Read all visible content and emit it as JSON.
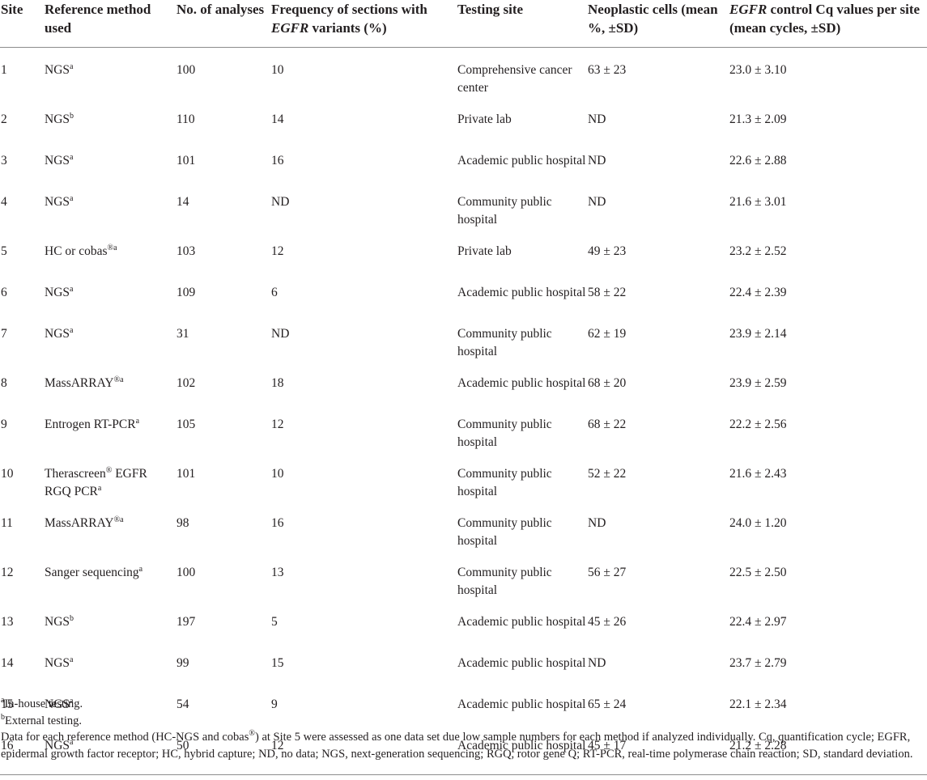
{
  "headers": {
    "site": "Site",
    "method": "Reference method used",
    "analyses": "No. of analyses",
    "freq_pre": "Frequency of sections with ",
    "freq_ital": "EGFR",
    "freq_post": " variants (%)",
    "testing": "Testing site",
    "neo": "Neoplastic cells (mean %, ±SD)",
    "cq_ital": "EGFR",
    "cq_post": " control Cq values per site (mean cycles, ±SD)"
  },
  "rows": [
    {
      "site": "1",
      "method": "NGS",
      "sup": "a",
      "analyses": "100",
      "freq": "10",
      "testing": "Comprehensive cancer center",
      "neo": "63 ± 23",
      "cq": "23.0 ± 3.10"
    },
    {
      "site": "2",
      "method": "NGS",
      "sup": "b",
      "analyses": "110",
      "freq": "14",
      "testing": "Private lab",
      "neo": "ND",
      "cq": "21.3 ± 2.09"
    },
    {
      "site": "3",
      "method": "NGS",
      "sup": "a",
      "analyses": "101",
      "freq": "16",
      "testing": "Academic public hospital",
      "neo": "ND",
      "cq": "22.6 ± 2.88"
    },
    {
      "site": "4",
      "method": "NGS",
      "sup": "a",
      "analyses": "14",
      "freq": "ND",
      "testing": "Community public hospital",
      "neo": "ND",
      "cq": "21.6 ± 3.01"
    },
    {
      "site": "5",
      "method": "HC or cobas",
      "sup": "®a",
      "analyses": "103",
      "freq": "12",
      "testing": "Private lab",
      "neo": "49 ± 23",
      "cq": "23.2 ± 2.52"
    },
    {
      "site": "6",
      "method": "NGS",
      "sup": "a",
      "analyses": "109",
      "freq": "6",
      "testing": "Academic public hospital",
      "neo": "58 ± 22",
      "cq": "22.4 ± 2.39"
    },
    {
      "site": "7",
      "method": "NGS",
      "sup": "a",
      "analyses": "31",
      "freq": "ND",
      "testing": "Community public hospital",
      "neo": "62 ± 19",
      "cq": "23.9 ± 2.14"
    },
    {
      "site": "8",
      "method": "MassARRAY",
      "sup": "®a",
      "analyses": "102",
      "freq": "18",
      "testing": "Academic public hospital",
      "neo": "68 ± 20",
      "cq": "23.9 ± 2.59"
    },
    {
      "site": "9",
      "method": "Entrogen RT-PCR",
      "sup": "a",
      "analyses": "105",
      "freq": "12",
      "testing": "Community public hospital",
      "neo": "68 ± 22",
      "cq": "22.2 ± 2.56"
    },
    {
      "site": "10",
      "method": "Therascreen",
      "sup": "®",
      "method2": " EGFR RGQ PCR",
      "sup2": "a",
      "analyses": "101",
      "freq": "10",
      "testing": "Community public hospital",
      "neo": "52 ± 22",
      "cq": "21.6 ± 2.43"
    },
    {
      "site": "11",
      "method": "MassARRAY",
      "sup": "®a",
      "analyses": "98",
      "freq": "16",
      "testing": "Community public hospital",
      "neo": "ND",
      "cq": "24.0 ± 1.20"
    },
    {
      "site": "12",
      "method": "Sanger sequencing",
      "sup": "a",
      "analyses": "100",
      "freq": "13",
      "testing": "Community public hospital",
      "neo": "56 ± 27",
      "cq": "22.5 ± 2.50"
    },
    {
      "site": "13",
      "method": "NGS",
      "sup": "b",
      "analyses": "197",
      "freq": "5",
      "testing": "Academic public hospital",
      "neo": "45 ± 26",
      "cq": "22.4 ± 2.97"
    },
    {
      "site": "14",
      "method": "NGS",
      "sup": "a",
      "analyses": "99",
      "freq": "15",
      "testing": "Academic public hospital",
      "neo": "ND",
      "cq": "23.7 ± 2.79"
    },
    {
      "site": "15",
      "method": "NGS",
      "sup": "a",
      "analyses": "54",
      "freq": "9",
      "testing": "Academic public hospital",
      "neo": "65 ± 24",
      "cq": "22.1 ± 2.34"
    },
    {
      "site": "16",
      "method": "NGS",
      "sup": "a",
      "analyses": "50",
      "freq": "12",
      "testing": "Academic public hospital",
      "neo": "45 ± 17",
      "cq": "21.2 ± 2.28"
    }
  ],
  "footnotes": {
    "a_sup": "a",
    "a_text": "In-house testing.",
    "b_sup": "b",
    "b_text": "External testing.",
    "note_pre": "Data for each reference method (HC-NGS and cobas",
    "note_sup": "®",
    "note_post": ") at Site 5 were assessed as one data set due low sample numbers for each method if analyzed individually. Cq, quantification cycle; EGFR, epidermal growth factor receptor; HC, hybrid capture; ND, no data; NGS, next-generation sequencing; RGQ, rotor gene Q; RT-PCR, real-time polymerase chain reaction; SD, standard deviation."
  }
}
